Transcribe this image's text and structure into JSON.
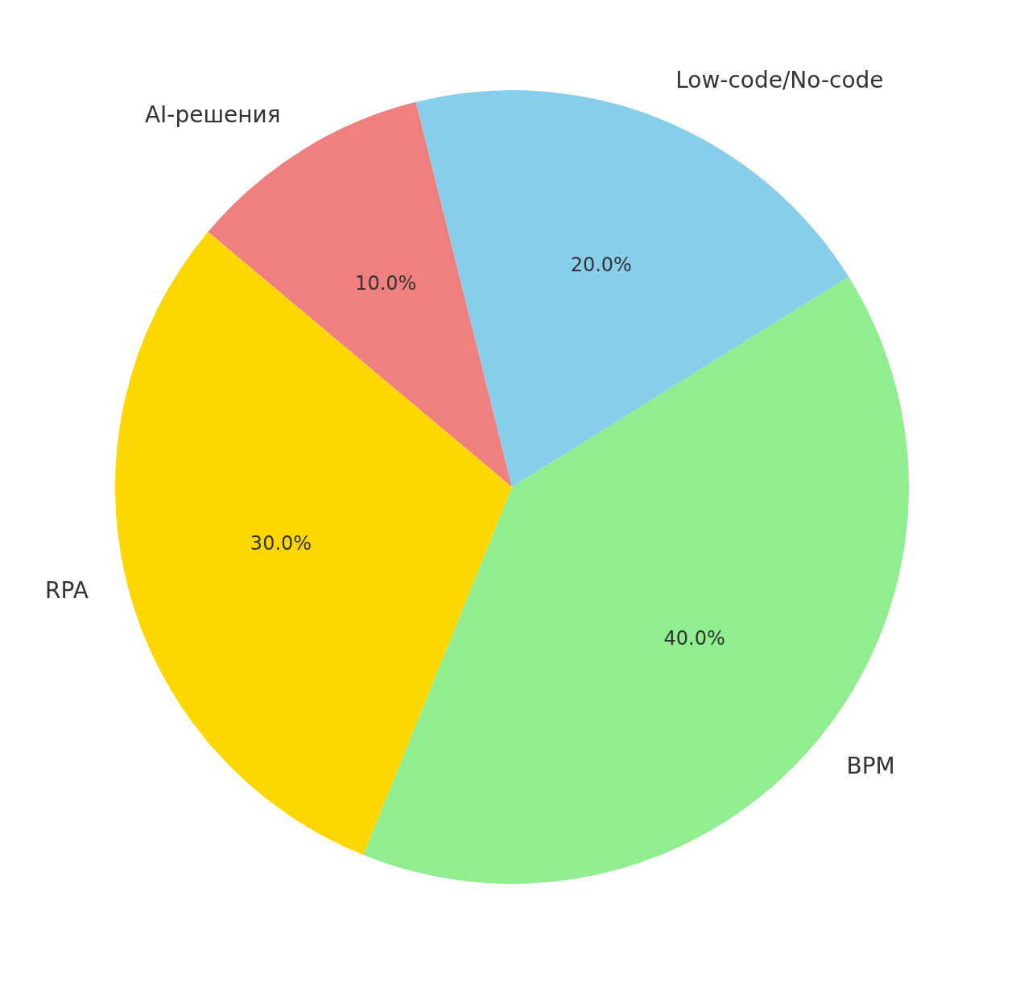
{
  "chart_data": {
    "type": "pie",
    "categories": [
      "AI-решения",
      "Low-code/No-code",
      "BPM",
      "RPA"
    ],
    "values": [
      10,
      20,
      40,
      30
    ],
    "colors": [
      "#f08080",
      "#87ceeb",
      "#90ee90",
      "#ffd700"
    ],
    "value_labels": [
      "10.0%",
      "20.0%",
      "40.0%",
      "30.0%"
    ],
    "legend": false
  }
}
